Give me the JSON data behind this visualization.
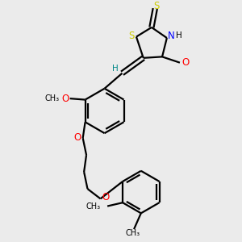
{
  "bg_color": "#ebebeb",
  "bond_color": "#000000",
  "S_color": "#cccc00",
  "N_color": "#0000ff",
  "O_color": "#ff0000",
  "H_color": "#008888",
  "line_width": 1.6,
  "figsize": [
    3.0,
    3.0
  ],
  "dpi": 100,
  "xlim": [
    0,
    10
  ],
  "ylim": [
    0,
    10
  ]
}
